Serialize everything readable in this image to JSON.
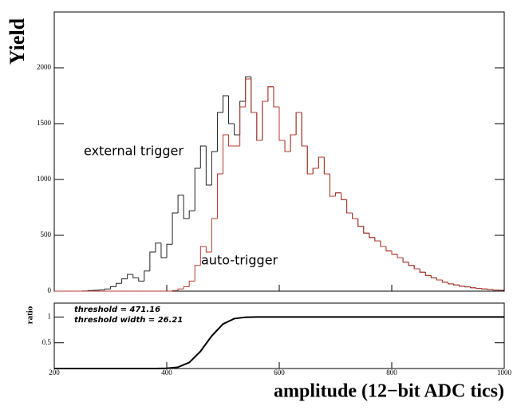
{
  "chart_data": [
    {
      "type": "histogram",
      "ylabel": "Yield",
      "bins": [
        200,
        210,
        220,
        230,
        240,
        250,
        260,
        270,
        280,
        290,
        300,
        310,
        320,
        330,
        340,
        350,
        360,
        370,
        380,
        390,
        400,
        410,
        420,
        430,
        440,
        450,
        460,
        470,
        480,
        490,
        500,
        510,
        520,
        530,
        540,
        550,
        560,
        570,
        580,
        590,
        600,
        610,
        620,
        630,
        640,
        650,
        660,
        670,
        680,
        690,
        700,
        710,
        720,
        730,
        740,
        750,
        760,
        770,
        780,
        790,
        800,
        810,
        820,
        830,
        840,
        850,
        860,
        870,
        880,
        890,
        900,
        910,
        920,
        930,
        940,
        950,
        960,
        970,
        980,
        990,
        1000
      ],
      "series": [
        {
          "name": "external trigger",
          "color": "#222222",
          "values": [
            0,
            0,
            0,
            0,
            0,
            2,
            5,
            8,
            12,
            20,
            40,
            70,
            110,
            150,
            120,
            90,
            180,
            350,
            430,
            300,
            420,
            700,
            860,
            650,
            720,
            1100,
            1300,
            950,
            1250,
            1600,
            1750,
            1500,
            1400,
            1700,
            1920,
            1600,
            1350,
            1700,
            1830,
            1650,
            1350,
            1250,
            1400,
            1600,
            1300,
            1050,
            1100,
            1200,
            1050,
            850,
            880,
            820,
            700,
            650,
            580,
            520,
            480,
            450,
            400,
            360,
            330,
            300,
            260,
            230,
            200,
            170,
            140,
            120,
            100,
            80,
            65,
            55,
            45,
            38,
            30,
            25,
            20,
            15,
            10,
            8
          ]
        },
        {
          "name": "auto-trigger",
          "color": "#b5382c",
          "values": [
            0,
            0,
            0,
            0,
            0,
            0,
            0,
            0,
            0,
            0,
            0,
            0,
            0,
            0,
            0,
            0,
            0,
            0,
            0,
            0,
            0,
            5,
            20,
            40,
            90,
            230,
            400,
            350,
            650,
            1050,
            1400,
            1300,
            1300,
            1650,
            1900,
            1600,
            1350,
            1700,
            1830,
            1650,
            1350,
            1250,
            1400,
            1600,
            1300,
            1050,
            1100,
            1200,
            1050,
            850,
            880,
            820,
            700,
            650,
            580,
            520,
            480,
            450,
            400,
            360,
            330,
            300,
            260,
            230,
            200,
            170,
            140,
            120,
            100,
            80,
            65,
            55,
            45,
            38,
            30,
            25,
            20,
            15,
            10,
            8
          ]
        }
      ],
      "xlim": [
        200,
        1000
      ],
      "ylim": [
        0,
        2500
      ],
      "yticks": [
        0,
        500,
        1000,
        1500,
        2000
      ]
    },
    {
      "type": "line",
      "ylabel": "ratio",
      "xlabel": "amplitude (12−bit ADC tics)",
      "annotations": [
        "threshold = 471.16",
        "threshold width = 26.21"
      ],
      "x": [
        200,
        380,
        400,
        420,
        440,
        460,
        480,
        500,
        520,
        540,
        560,
        1000
      ],
      "values": [
        0,
        0,
        0.003,
        0.026,
        0.117,
        0.334,
        0.633,
        0.864,
        0.969,
        0.996,
        1,
        1
      ],
      "color": "#000000",
      "xlim": [
        200,
        1000
      ],
      "xticks": [
        200,
        400,
        600,
        800,
        1000
      ],
      "ylim": [
        0,
        1.27
      ],
      "yticks": [
        0.5,
        1
      ]
    }
  ]
}
